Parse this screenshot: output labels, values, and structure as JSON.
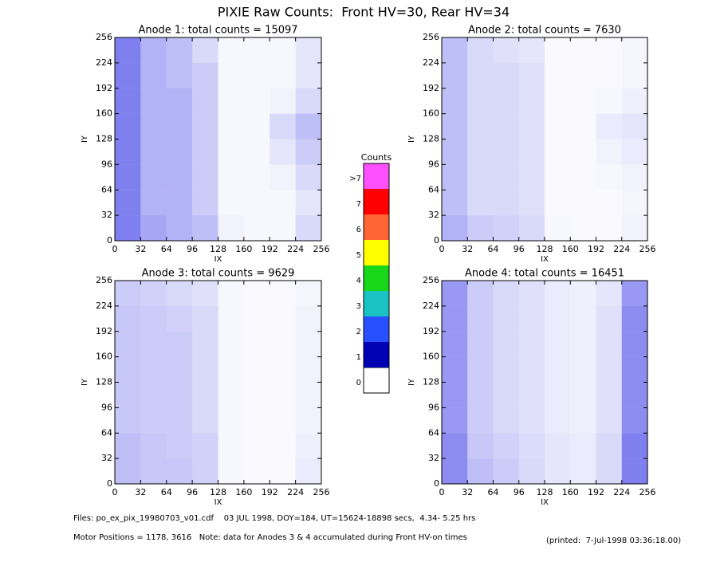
{
  "title": "PIXIE Raw Counts:  Front HV=30, Rear HV=34",
  "chart_data": [
    {
      "type": "heatmap",
      "title": "Anode 1: total counts = 15097",
      "xlabel": "IX",
      "ylabel": "IY",
      "color": "#0000e0",
      "xlim": [
        0,
        256
      ],
      "ylim": [
        0,
        256
      ],
      "xticks": [
        0,
        32,
        64,
        96,
        128,
        160,
        192,
        224,
        256
      ],
      "yticks": [
        0,
        32,
        64,
        96,
        128,
        160,
        192,
        224,
        256
      ],
      "z": [
        [
          0.5,
          0.3,
          0.25,
          0.15,
          0.03,
          0.03,
          0.03,
          0.1
        ],
        [
          0.5,
          0.3,
          0.25,
          0.2,
          0.03,
          0.03,
          0.03,
          0.1
        ],
        [
          0.5,
          0.3,
          0.3,
          0.2,
          0.03,
          0.03,
          0.05,
          0.15
        ],
        [
          0.5,
          0.3,
          0.3,
          0.2,
          0.03,
          0.03,
          0.15,
          0.25
        ],
        [
          0.5,
          0.3,
          0.3,
          0.2,
          0.03,
          0.03,
          0.1,
          0.2
        ],
        [
          0.5,
          0.3,
          0.3,
          0.2,
          0.03,
          0.03,
          0.05,
          0.15
        ],
        [
          0.5,
          0.3,
          0.3,
          0.2,
          0.03,
          0.03,
          0.03,
          0.1
        ],
        [
          0.5,
          0.35,
          0.3,
          0.25,
          0.05,
          0.03,
          0.03,
          0.15
        ]
      ]
    },
    {
      "type": "heatmap",
      "title": "Anode 2: total counts = 7630",
      "xlabel": "IX",
      "ylabel": "IY",
      "color": "#0000e0",
      "xlim": [
        0,
        256
      ],
      "ylim": [
        0,
        256
      ],
      "xticks": [
        0,
        32,
        64,
        96,
        128,
        160,
        192,
        224,
        256
      ],
      "yticks": [
        0,
        32,
        64,
        96,
        128,
        160,
        192,
        224,
        256
      ],
      "z": [
        [
          0.25,
          0.15,
          0.12,
          0.1,
          0.02,
          0.02,
          0.02,
          0.04
        ],
        [
          0.25,
          0.15,
          0.15,
          0.12,
          0.02,
          0.02,
          0.02,
          0.04
        ],
        [
          0.25,
          0.15,
          0.15,
          0.12,
          0.02,
          0.02,
          0.03,
          0.06
        ],
        [
          0.25,
          0.15,
          0.15,
          0.12,
          0.02,
          0.02,
          0.08,
          0.1
        ],
        [
          0.25,
          0.15,
          0.15,
          0.12,
          0.02,
          0.02,
          0.05,
          0.08
        ],
        [
          0.25,
          0.15,
          0.15,
          0.12,
          0.02,
          0.02,
          0.03,
          0.05
        ],
        [
          0.25,
          0.15,
          0.15,
          0.12,
          0.02,
          0.02,
          0.02,
          0.04
        ],
        [
          0.3,
          0.2,
          0.18,
          0.15,
          0.03,
          0.02,
          0.02,
          0.05
        ]
      ]
    },
    {
      "type": "heatmap",
      "title": "Anode 3: total counts = 9629",
      "xlabel": "IX",
      "ylabel": "IY",
      "color": "#0000e0",
      "xlim": [
        0,
        256
      ],
      "ylim": [
        0,
        256
      ],
      "xticks": [
        0,
        32,
        64,
        96,
        128,
        160,
        192,
        224,
        256
      ],
      "yticks": [
        0,
        32,
        64,
        96,
        128,
        160,
        192,
        224,
        256
      ],
      "z": [
        [
          0.2,
          0.18,
          0.15,
          0.12,
          0.03,
          0.02,
          0.02,
          0.04
        ],
        [
          0.22,
          0.2,
          0.18,
          0.15,
          0.03,
          0.02,
          0.02,
          0.05
        ],
        [
          0.22,
          0.2,
          0.2,
          0.15,
          0.03,
          0.02,
          0.02,
          0.05
        ],
        [
          0.22,
          0.2,
          0.2,
          0.15,
          0.03,
          0.02,
          0.02,
          0.05
        ],
        [
          0.22,
          0.2,
          0.2,
          0.15,
          0.03,
          0.02,
          0.02,
          0.05
        ],
        [
          0.22,
          0.2,
          0.2,
          0.15,
          0.03,
          0.02,
          0.02,
          0.05
        ],
        [
          0.25,
          0.22,
          0.2,
          0.18,
          0.03,
          0.02,
          0.02,
          0.06
        ],
        [
          0.25,
          0.22,
          0.22,
          0.18,
          0.03,
          0.02,
          0.02,
          0.08
        ]
      ]
    },
    {
      "type": "heatmap",
      "title": "Anode 4: total counts = 16451",
      "xlabel": "IX",
      "ylabel": "IY",
      "color": "#0000e0",
      "xlim": [
        0,
        256
      ],
      "ylim": [
        0,
        256
      ],
      "xticks": [
        0,
        32,
        64,
        96,
        128,
        160,
        192,
        224,
        256
      ],
      "yticks": [
        0,
        32,
        64,
        96,
        128,
        160,
        192,
        224,
        256
      ],
      "z": [
        [
          0.4,
          0.2,
          0.15,
          0.12,
          0.08,
          0.06,
          0.1,
          0.4
        ],
        [
          0.4,
          0.2,
          0.15,
          0.12,
          0.08,
          0.06,
          0.12,
          0.45
        ],
        [
          0.4,
          0.2,
          0.15,
          0.12,
          0.08,
          0.06,
          0.12,
          0.45
        ],
        [
          0.4,
          0.2,
          0.15,
          0.12,
          0.08,
          0.06,
          0.12,
          0.45
        ],
        [
          0.4,
          0.2,
          0.15,
          0.12,
          0.08,
          0.06,
          0.12,
          0.45
        ],
        [
          0.4,
          0.2,
          0.15,
          0.12,
          0.08,
          0.06,
          0.12,
          0.45
        ],
        [
          0.45,
          0.22,
          0.18,
          0.14,
          0.1,
          0.08,
          0.15,
          0.5
        ],
        [
          0.45,
          0.25,
          0.2,
          0.15,
          0.1,
          0.08,
          0.15,
          0.5
        ]
      ]
    }
  ],
  "colorbar": {
    "title": "Counts",
    "labels": [
      0,
      1,
      2,
      3,
      4,
      5,
      6,
      7,
      ">7"
    ],
    "colors": [
      "#ffffff",
      "#0000b4",
      "#2850ff",
      "#19c3c3",
      "#19d719",
      "#ffff00",
      "#ff6432",
      "#ff0000",
      "#ff50ff"
    ]
  },
  "footer": {
    "files": "Files: po_ex_pix_19980703_v01.cdf    03 JUL 1998, DOY=184, UT=15624-18898 secs,  4.34- 5.25 hrs",
    "motor": "Motor Positions = 1178, 3616   Note: data for Anodes 3 & 4 accumulated during Front HV-on times",
    "printed": "(printed:  7-Jul-1998 03:36:18.00)"
  }
}
